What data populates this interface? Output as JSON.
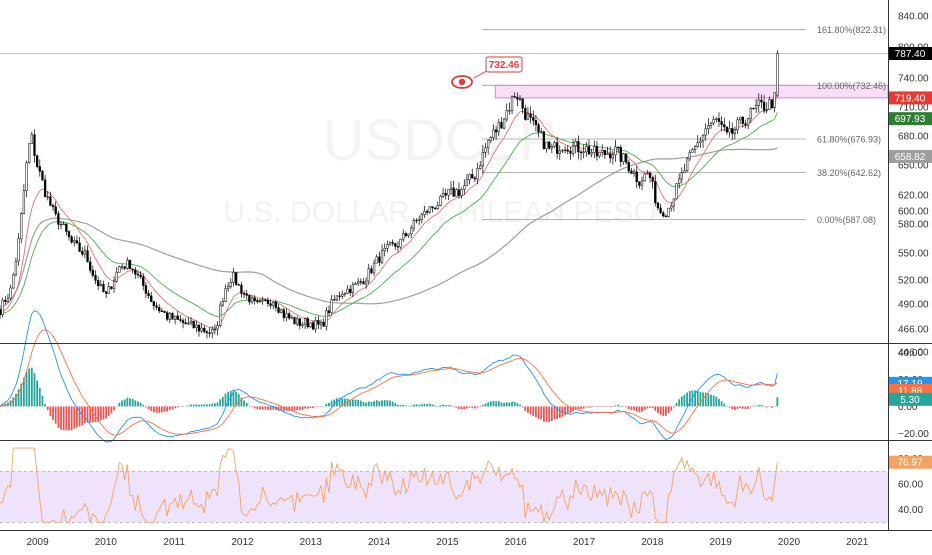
{
  "watermark": {
    "symbol": "USDCLP",
    "name": "U.S. DOLLAR / CHILEAN PESO"
  },
  "colors": {
    "price_up": "#000000",
    "price_down": "#000000",
    "ema_red": "#e57373",
    "ema_green": "#4caf50",
    "ma_gray": "#9e9e9e",
    "fib": "#9e9e9e",
    "zone": "#f3c8f0",
    "zone_border": "#d070c8",
    "macd_line": "#2196f3",
    "signal_line": "#ff7043",
    "hist_pos": "#26a69a",
    "hist_neg": "#ef5350",
    "rsi_line": "#f4a261",
    "rsi_band": "#efe3fb",
    "alert": "#e53935"
  },
  "alert": {
    "icon": "eye-icon",
    "label": "732.46"
  },
  "chart_data": [
    {
      "type": "candlestick",
      "pane": "price",
      "ylim": [
        436,
        852
      ],
      "ticks": [
        "840.00",
        "800.00",
        "740.00",
        "710.00",
        "680.00",
        "650.00",
        "620.00",
        "600.00",
        "580.00",
        "550.00",
        "520.00",
        "490.00",
        "466.00",
        "446.00"
      ],
      "tick_values": [
        840,
        800,
        740,
        710,
        680,
        650,
        620,
        600,
        580,
        550,
        520,
        490,
        466,
        446
      ],
      "x_labels": [
        "2009",
        "2010",
        "2011",
        "2012",
        "2013",
        "2014",
        "2015",
        "2016",
        "2017",
        "2018",
        "2019",
        "2020",
        "2021"
      ],
      "x_years": [
        2009,
        2010,
        2011,
        2012,
        2013,
        2014,
        2015,
        2016,
        2017,
        2018,
        2019,
        2020,
        2021
      ],
      "xlim": [
        2008.45,
        2021.45
      ],
      "price_path": [
        [
          2008.45,
          485
        ],
        [
          2008.6,
          505
        ],
        [
          2008.72,
          560
        ],
        [
          2008.82,
          640
        ],
        [
          2008.9,
          682
        ],
        [
          2009.0,
          648
        ],
        [
          2009.15,
          615
        ],
        [
          2009.3,
          585
        ],
        [
          2009.5,
          560
        ],
        [
          2009.7,
          548
        ],
        [
          2009.85,
          520
        ],
        [
          2010.0,
          500
        ],
        [
          2010.2,
          535
        ],
        [
          2010.35,
          538
        ],
        [
          2010.5,
          520
        ],
        [
          2010.7,
          490
        ],
        [
          2010.9,
          478
        ],
        [
          2011.0,
          475
        ],
        [
          2011.2,
          470
        ],
        [
          2011.4,
          466
        ],
        [
          2011.6,
          462
        ],
        [
          2011.75,
          510
        ],
        [
          2011.85,
          525
        ],
        [
          2012.0,
          505
        ],
        [
          2012.2,
          488
        ],
        [
          2012.45,
          495
        ],
        [
          2012.6,
          480
        ],
        [
          2012.8,
          472
        ],
        [
          2013.0,
          472
        ],
        [
          2013.15,
          468
        ],
        [
          2013.3,
          490
        ],
        [
          2013.45,
          505
        ],
        [
          2013.6,
          510
        ],
        [
          2013.8,
          522
        ],
        [
          2014.0,
          545
        ],
        [
          2014.15,
          555
        ],
        [
          2014.3,
          560
        ],
        [
          2014.5,
          580
        ],
        [
          2014.7,
          600
        ],
        [
          2014.9,
          612
        ],
        [
          2015.0,
          620
        ],
        [
          2015.2,
          625
        ],
        [
          2015.4,
          640
        ],
        [
          2015.6,
          675
        ],
        [
          2015.75,
          690
        ],
        [
          2015.9,
          710
        ],
        [
          2016.0,
          726
        ],
        [
          2016.15,
          702
        ],
        [
          2016.3,
          685
        ],
        [
          2016.5,
          665
        ],
        [
          2016.7,
          672
        ],
        [
          2016.85,
          668
        ],
        [
          2017.0,
          668
        ],
        [
          2017.2,
          660
        ],
        [
          2017.45,
          665
        ],
        [
          2017.65,
          650
        ],
        [
          2017.8,
          635
        ],
        [
          2017.95,
          642
        ],
        [
          2018.1,
          600
        ],
        [
          2018.2,
          598
        ],
        [
          2018.35,
          625
        ],
        [
          2018.5,
          650
        ],
        [
          2018.65,
          670
        ],
        [
          2018.8,
          690
        ],
        [
          2018.95,
          696
        ],
        [
          2019.1,
          678
        ],
        [
          2019.25,
          690
        ],
        [
          2019.4,
          700
        ],
        [
          2019.55,
          710
        ],
        [
          2019.7,
          712
        ],
        [
          2019.8,
          719
        ],
        [
          2019.83,
          790
        ]
      ],
      "indicators": {
        "ema_fast": "red",
        "ema_slow": "green",
        "ma_long": "gray"
      },
      "last_values": [
        {
          "label": "787.40",
          "value": 787.4,
          "color": "#000000"
        },
        {
          "label": "719.40",
          "value": 719.4,
          "color": "#e53935"
        },
        {
          "label": "697.93",
          "value": 697.93,
          "color": "#2e7d32"
        },
        {
          "label": "658.82",
          "value": 658.82,
          "color": "#9e9e9e"
        }
      ],
      "fibonacci": [
        {
          "label": "161.80%(822.31)",
          "value": 822.31
        },
        {
          "label": "100.00%(732.46)",
          "value": 732.46
        },
        {
          "label": "61.80%(676.93)",
          "value": 676.93
        },
        {
          "label": "38.20%(642.62)",
          "value": 642.62
        },
        {
          "label": "0.00%(587.08)",
          "value": 587.08
        }
      ],
      "zone": {
        "from": 719.4,
        "to": 732.46,
        "x_from": 2015.7,
        "x_to": 2021.45
      },
      "crosshair_value": 787.4
    },
    {
      "type": "macd",
      "pane": "macd",
      "ylim": [
        -25,
        45
      ],
      "ticks": [
        "40.00",
        "20.00",
        "0.00",
        "−20.00"
      ],
      "tick_values": [
        40,
        20,
        0,
        -20
      ],
      "last_values": [
        {
          "label": "17.19",
          "value": 17.19,
          "color": "#2196f3"
        },
        {
          "label": "11.88",
          "value": 11.88,
          "color": "#ff7043"
        },
        {
          "label": "5.30",
          "value": 5.3,
          "color": "#26a69a"
        }
      ]
    },
    {
      "type": "rsi",
      "pane": "rsi",
      "ylim": [
        24,
        92
      ],
      "ticks": [
        "80.00",
        "60.00",
        "40.00"
      ],
      "tick_values": [
        80,
        60,
        40
      ],
      "band": [
        30,
        70
      ],
      "last_values": [
        {
          "label": "76.97",
          "value": 76.97,
          "color": "#f4a261"
        }
      ]
    }
  ]
}
